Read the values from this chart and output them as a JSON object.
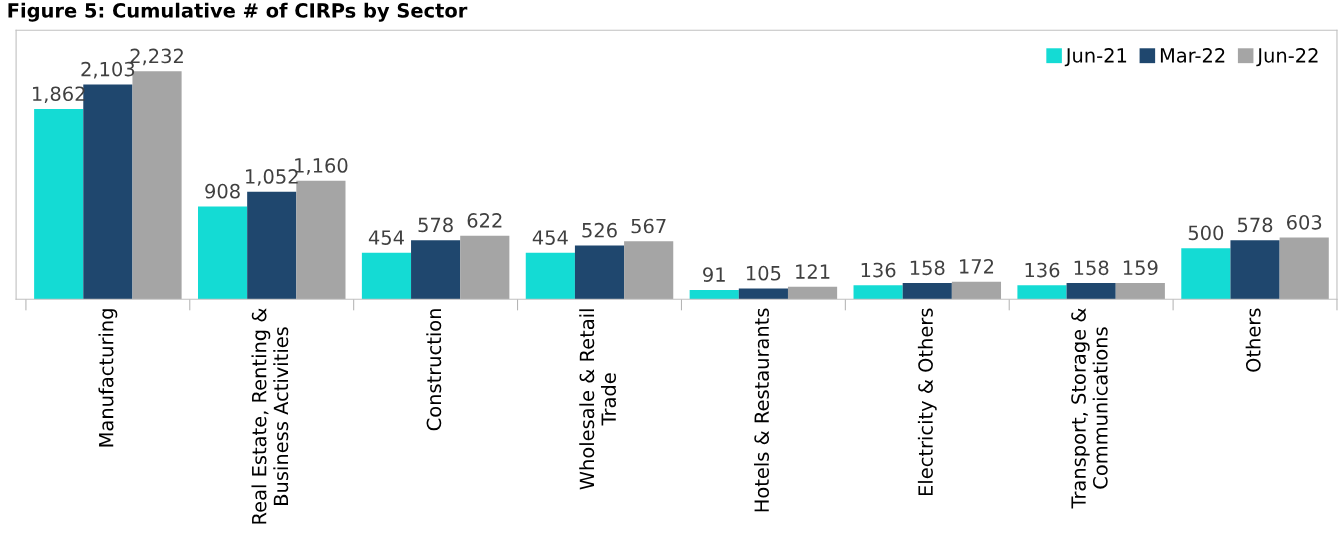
{
  "chart_data": {
    "type": "bar",
    "title": "Figure 5: Cumulative # of CIRPs by Sector",
    "categories": [
      "Manufacturing",
      "Real Estate, Renting &\nBusiness Activities",
      "Construction",
      "Wholesale & Retail\nTrade",
      "Hotels & Restaurants",
      "Electricity & Others",
      "Transport, Storage &\nCommunications",
      "Others"
    ],
    "series": [
      {
        "name": "Jun-21",
        "color": "#14dbd4",
        "values": [
          1862,
          908,
          454,
          454,
          91,
          136,
          136,
          500
        ],
        "value_labels": [
          "1,862",
          "908",
          "454",
          "454",
          "91",
          "136",
          "136",
          "500"
        ]
      },
      {
        "name": "Mar-22",
        "color": "#1f476e",
        "values": [
          2103,
          1052,
          578,
          526,
          105,
          158,
          158,
          578
        ],
        "value_labels": [
          "2,103",
          "1,052",
          "578",
          "526",
          "105",
          "158",
          "158",
          "578"
        ]
      },
      {
        "name": "Jun-22",
        "color": "#a5a5a5",
        "values": [
          2232,
          1160,
          622,
          567,
          121,
          172,
          159,
          603
        ],
        "value_labels": [
          "2,232",
          "1,160",
          "622",
          "567",
          "121",
          "172",
          "159",
          "603"
        ]
      }
    ],
    "legend": "top right",
    "grid": false
  }
}
